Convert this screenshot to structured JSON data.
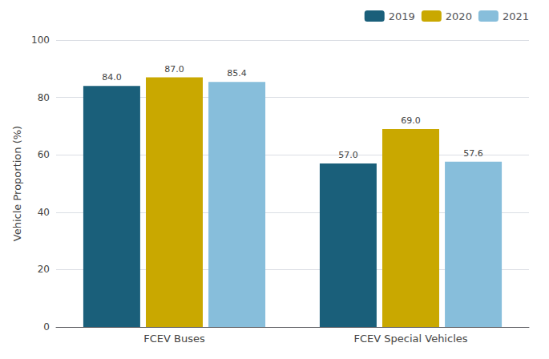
{
  "chart_data": {
    "type": "bar",
    "categories": [
      "FCEV Buses",
      "FCEV Special Vehicles"
    ],
    "series": [
      {
        "name": "2019",
        "color": "#1a5f7a",
        "values": [
          84.0,
          57.0
        ],
        "value_labels": [
          "84.0",
          "57.0"
        ]
      },
      {
        "name": "2020",
        "color": "#c9a800",
        "values": [
          87.0,
          69.0
        ],
        "value_labels": [
          "87.0",
          "69.0"
        ]
      },
      {
        "name": "2021",
        "color": "#87bedb",
        "values": [
          85.4,
          57.6
        ],
        "value_labels": [
          "85.4",
          "57.6"
        ]
      }
    ],
    "ylabel": "Vehicle Proportion (%)",
    "ylim": [
      0,
      100
    ],
    "yticks": [
      0,
      20,
      40,
      60,
      80,
      100
    ],
    "grid": true,
    "legend": "upper right",
    "data_labels": true
  }
}
